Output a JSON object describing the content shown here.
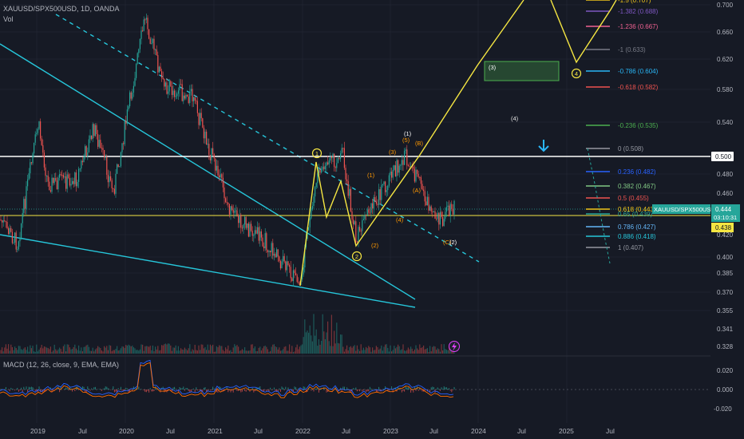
{
  "header": {
    "symbol_line": "XAUUSD/SPX500USD, 1D, OANDA",
    "vol_label": "Vol",
    "macd_label": "MACD (12, 26, close, 9, EMA, EMA)"
  },
  "price_axis": {
    "ticks": [
      "0.700",
      "0.660",
      "0.620",
      "0.580",
      "0.540",
      "0.480",
      "0.460",
      "0.420",
      "0.400",
      "0.385",
      "0.370",
      "0.355",
      "0.341",
      "0.328"
    ],
    "marker_500": "0.500",
    "last_price": "0.444",
    "countdown": "03:10:31",
    "symbol_tag": "XAUUSD/SPX500USD",
    "yellow_price": "0.438"
  },
  "macd_axis": {
    "ticks": [
      "0.020",
      "0.000",
      "-0.020"
    ]
  },
  "time_axis": {
    "ticks": [
      "2019",
      "Jul",
      "2020",
      "Jul",
      "2021",
      "Jul",
      "2022",
      "Jul",
      "2023",
      "Jul",
      "2024",
      "Jul",
      "2025",
      "Jul"
    ]
  },
  "fib_levels": [
    {
      "label": "-1.5 (0.707)",
      "color": "#f0c419"
    },
    {
      "label": "-1.382 (0.688)",
      "color": "#7e57c2"
    },
    {
      "label": "-1.236 (0.667)",
      "color": "#f06292"
    },
    {
      "label": "-1 (0.633)",
      "color": "#787b86"
    },
    {
      "label": "-0.786 (0.604)",
      "color": "#29b6f6"
    },
    {
      "label": "-0.618 (0.582)",
      "color": "#ef5350"
    },
    {
      "label": "-0.236 (0.535)",
      "color": "#4caf50"
    },
    {
      "label": "0 (0.508)",
      "color": "#9598a1"
    },
    {
      "label": "0.236 (0.482)",
      "color": "#2962ff"
    },
    {
      "label": "0.382 (0.467)",
      "color": "#81c784"
    },
    {
      "label": "0.5 (0.455)",
      "color": "#ef5350"
    },
    {
      "label": "0.618 (0.443)",
      "color": "#f0c419"
    },
    {
      "label": "0.65 (0.439)",
      "color": "#26a69a"
    },
    {
      "label": "0.786 (0.427)",
      "color": "#64b5f6"
    },
    {
      "label": "0.886 (0.418)",
      "color": "#26c6da"
    },
    {
      "label": "1 (0.407)",
      "color": "#9598a1"
    }
  ],
  "waves": {
    "circled_1": "1",
    "circled_2": "2",
    "circled_4": "4",
    "w1": "(1)",
    "w2": "(2)",
    "w3": "(3)",
    "w4": "(4)",
    "w5": "(5)",
    "wA": "(A)",
    "wB": "(B)",
    "wC": "(C)",
    "wC2": "(2)",
    "top1": "(1)",
    "proj3": "(3)",
    "proj4": "(4)"
  },
  "colors": {
    "background": "#161a25",
    "trendline": "#26c6da",
    "projection": "#f5e642",
    "up": "#26a69a",
    "down": "#ef5350",
    "macd": "#2962ff",
    "signal": "#ff6d00",
    "last_price_bg": "#26a69a",
    "yellow_tag_bg": "#f5e642"
  }
}
